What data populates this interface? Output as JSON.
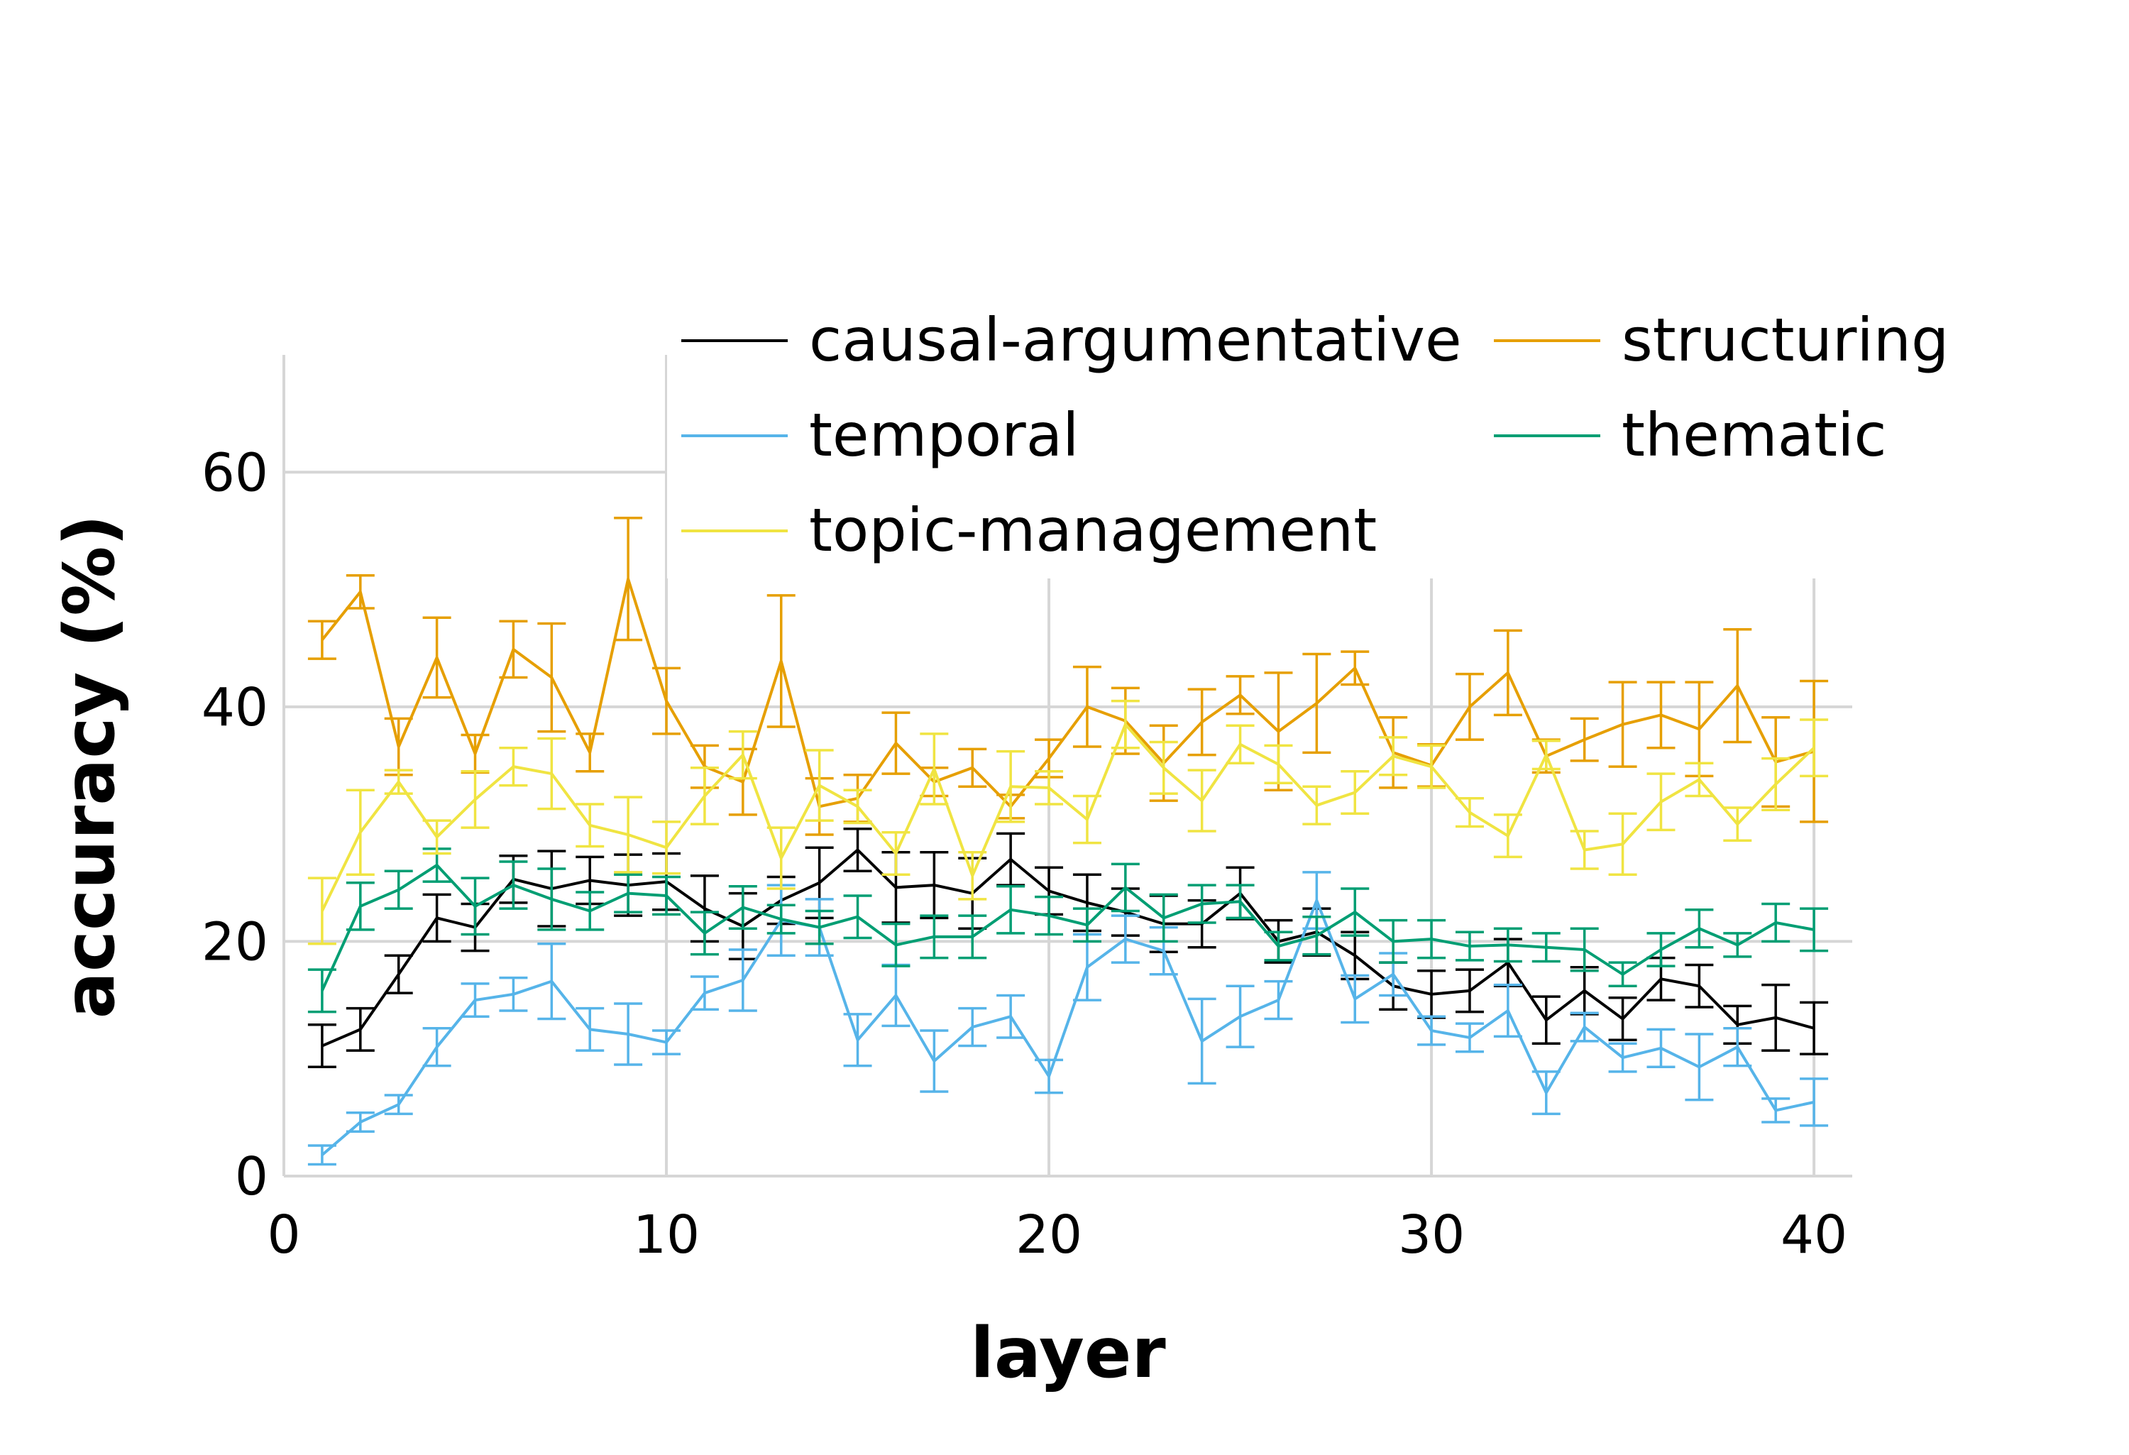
{
  "chart_data": {
    "type": "line",
    "xlabel": "layer",
    "ylabel": "accuracy (%)",
    "xlim": [
      0,
      41
    ],
    "ylim": [
      0,
      70
    ],
    "xticks": [
      "0",
      "10",
      "20",
      "30",
      "40"
    ],
    "yticks": [
      "0",
      "20",
      "40",
      "60"
    ],
    "grid": true,
    "legend": "top-right",
    "x": [
      1,
      2,
      3,
      4,
      5,
      6,
      7,
      8,
      9,
      10,
      11,
      12,
      13,
      14,
      15,
      16,
      17,
      18,
      19,
      20,
      21,
      22,
      23,
      24,
      25,
      26,
      27,
      28,
      29,
      30,
      31,
      32,
      33,
      34,
      35,
      36,
      37,
      38,
      39,
      40
    ],
    "series": [
      {
        "name": "causal-argumentative",
        "color": "#000000",
        "values": [
          11.1,
          12.5,
          17.2,
          22.0,
          21.2,
          25.3,
          24.5,
          25.2,
          24.8,
          25.1,
          22.8,
          21.3,
          23.5,
          25.0,
          27.8,
          24.6,
          24.8,
          24.1,
          27.0,
          24.3,
          23.3,
          22.5,
          21.5,
          21.5,
          24.1,
          20.0,
          20.8,
          18.8,
          16.2,
          15.5,
          15.8,
          18.2,
          13.3,
          15.8,
          13.4,
          16.8,
          16.2,
          12.9,
          13.5,
          12.6
        ],
        "err": [
          1.8,
          1.8,
          1.6,
          2.0,
          2.0,
          2.0,
          3.2,
          2.0,
          2.6,
          2.4,
          2.8,
          2.8,
          2.0,
          3.0,
          1.8,
          3.0,
          2.8,
          3.0,
          2.2,
          2.0,
          2.4,
          2.0,
          2.4,
          2.0,
          2.2,
          1.8,
          2.0,
          2.0,
          2.0,
          2.0,
          1.8,
          2.0,
          2.0,
          2.0,
          1.8,
          1.8,
          1.8,
          1.6,
          2.8,
          2.2
        ]
      },
      {
        "name": "structuring",
        "color": "#E69F00",
        "values": [
          45.7,
          49.8,
          36.6,
          44.2,
          36.0,
          44.9,
          42.5,
          36.1,
          50.9,
          40.5,
          34.9,
          33.6,
          43.9,
          31.5,
          32.2,
          36.9,
          33.6,
          34.8,
          31.5,
          35.6,
          40.0,
          38.8,
          35.2,
          38.7,
          41.0,
          37.9,
          40.3,
          43.3,
          36.1,
          35.0,
          40.0,
          42.9,
          35.8,
          37.2,
          38.5,
          39.3,
          38.1,
          41.8,
          35.3,
          36.2
        ],
        "err": [
          1.6,
          1.4,
          2.4,
          3.4,
          1.6,
          2.4,
          4.6,
          1.6,
          5.2,
          2.8,
          1.8,
          2.8,
          5.6,
          2.4,
          2.0,
          2.6,
          1.2,
          1.6,
          1.0,
          1.6,
          3.4,
          2.8,
          3.2,
          2.8,
          1.6,
          5.0,
          4.2,
          1.4,
          3.0,
          1.8,
          2.8,
          3.6,
          1.4,
          1.8,
          3.6,
          2.8,
          4.0,
          4.8,
          3.8,
          6.0
        ]
      },
      {
        "name": "temporal",
        "color": "#56B4E9",
        "values": [
          1.8,
          4.6,
          6.1,
          11.0,
          15.0,
          15.5,
          16.6,
          12.5,
          12.1,
          11.4,
          15.6,
          16.7,
          21.8,
          21.2,
          11.6,
          15.4,
          9.8,
          12.7,
          13.6,
          8.5,
          17.8,
          20.2,
          19.2,
          11.5,
          13.6,
          15.0,
          23.5,
          15.1,
          17.2,
          12.4,
          11.8,
          14.1,
          7.1,
          12.7,
          10.1,
          10.9,
          9.3,
          11.0,
          5.6,
          6.3
        ],
        "err": [
          0.8,
          0.8,
          0.8,
          1.6,
          1.4,
          1.4,
          3.2,
          1.8,
          2.6,
          1.0,
          1.4,
          2.6,
          3.0,
          2.4,
          2.2,
          2.6,
          2.6,
          1.6,
          1.8,
          1.4,
          2.8,
          2.0,
          2.0,
          3.6,
          2.6,
          1.6,
          2.4,
          2.0,
          1.8,
          1.2,
          1.2,
          2.2,
          1.8,
          1.2,
          1.2,
          1.6,
          2.8,
          1.6,
          1.0,
          2.0
        ]
      },
      {
        "name": "thematic",
        "color": "#009E73",
        "values": [
          15.8,
          23.0,
          24.4,
          26.5,
          23.0,
          24.8,
          23.6,
          22.6,
          24.1,
          23.9,
          20.7,
          22.9,
          21.9,
          21.2,
          22.1,
          19.7,
          20.4,
          20.4,
          22.7,
          22.2,
          21.4,
          24.6,
          22.0,
          23.2,
          23.4,
          19.6,
          20.5,
          22.5,
          20.0,
          20.2,
          19.6,
          19.7,
          19.5,
          19.3,
          17.2,
          19.3,
          21.1,
          19.7,
          21.6,
          21.0
        ],
        "err": [
          1.8,
          2.0,
          1.6,
          1.4,
          2.4,
          2.0,
          2.6,
          1.6,
          1.6,
          1.6,
          1.8,
          1.8,
          1.2,
          1.4,
          1.8,
          1.8,
          1.8,
          1.8,
          2.0,
          1.6,
          1.4,
          2.0,
          2.0,
          1.6,
          1.4,
          1.2,
          1.6,
          2.0,
          1.8,
          1.6,
          1.2,
          1.4,
          1.2,
          1.8,
          1.0,
          1.4,
          1.6,
          1.0,
          1.6,
          1.8
        ]
      },
      {
        "name": "topic-management",
        "color": "#F0E442",
        "values": [
          22.6,
          29.3,
          33.6,
          28.9,
          32.1,
          34.9,
          34.3,
          29.9,
          29.1,
          28.0,
          32.4,
          35.9,
          27.1,
          33.3,
          31.5,
          27.5,
          34.7,
          25.6,
          33.2,
          33.1,
          30.4,
          38.5,
          34.8,
          32.0,
          36.8,
          35.1,
          31.6,
          32.7,
          35.8,
          34.9,
          31.0,
          29.0,
          35.9,
          27.8,
          28.3,
          31.9,
          33.8,
          30.0,
          33.4,
          36.5
        ],
        "err": [
          2.8,
          3.6,
          1.0,
          1.4,
          2.4,
          1.6,
          3.0,
          1.8,
          3.2,
          2.2,
          2.4,
          2.0,
          2.6,
          3.0,
          1.4,
          1.8,
          3.0,
          2.0,
          3.0,
          1.4,
          2.0,
          2.0,
          2.2,
          2.6,
          1.6,
          1.6,
          1.6,
          1.8,
          1.6,
          1.8,
          1.2,
          1.8,
          1.2,
          1.6,
          2.6,
          2.4,
          1.4,
          1.4,
          2.2,
          2.4
        ]
      }
    ]
  }
}
